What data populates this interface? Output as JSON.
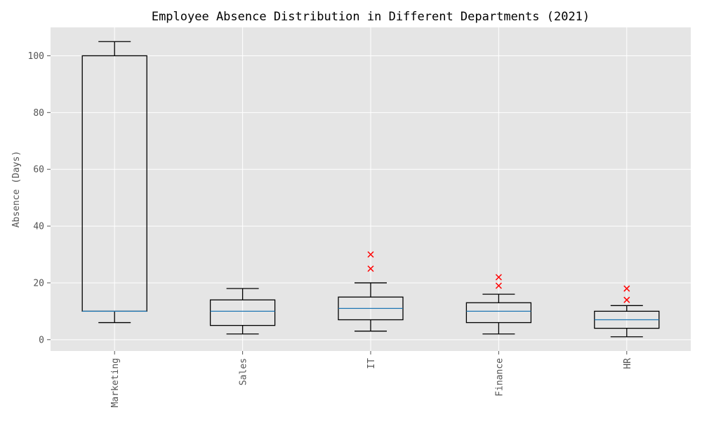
{
  "chart_data": {
    "type": "box",
    "title": "Employee Absence Distribution in Different Departments (2021)",
    "xlabel": "",
    "ylabel": "Absence (Days)",
    "ylim": [
      -4,
      110
    ],
    "yticks": [
      0,
      20,
      40,
      60,
      80,
      100
    ],
    "grid": true,
    "categories": [
      "Marketing",
      "Sales",
      "IT",
      "Finance",
      "HR"
    ],
    "boxes": [
      {
        "whisker_low": 6,
        "q1": 10,
        "median": 10,
        "q3": 100,
        "whisker_high": 105,
        "outliers": []
      },
      {
        "whisker_low": 2,
        "q1": 5,
        "median": 10,
        "q3": 14,
        "whisker_high": 18,
        "outliers": []
      },
      {
        "whisker_low": 3,
        "q1": 7,
        "median": 11,
        "q3": 15,
        "whisker_high": 20,
        "outliers": [
          25,
          30
        ]
      },
      {
        "whisker_low": 2,
        "q1": 6,
        "median": 10,
        "q3": 13,
        "whisker_high": 16,
        "outliers": [
          19,
          22
        ]
      },
      {
        "whisker_low": 1,
        "q1": 4,
        "median": 7,
        "q3": 10,
        "whisker_high": 12,
        "outliers": [
          14,
          18
        ]
      }
    ],
    "colors": {
      "plot_background": "#e5e5e5",
      "grid": "#ffffff",
      "box_edge": "#000000",
      "median": "#1f77b4",
      "outlier": "#ff0000"
    }
  }
}
